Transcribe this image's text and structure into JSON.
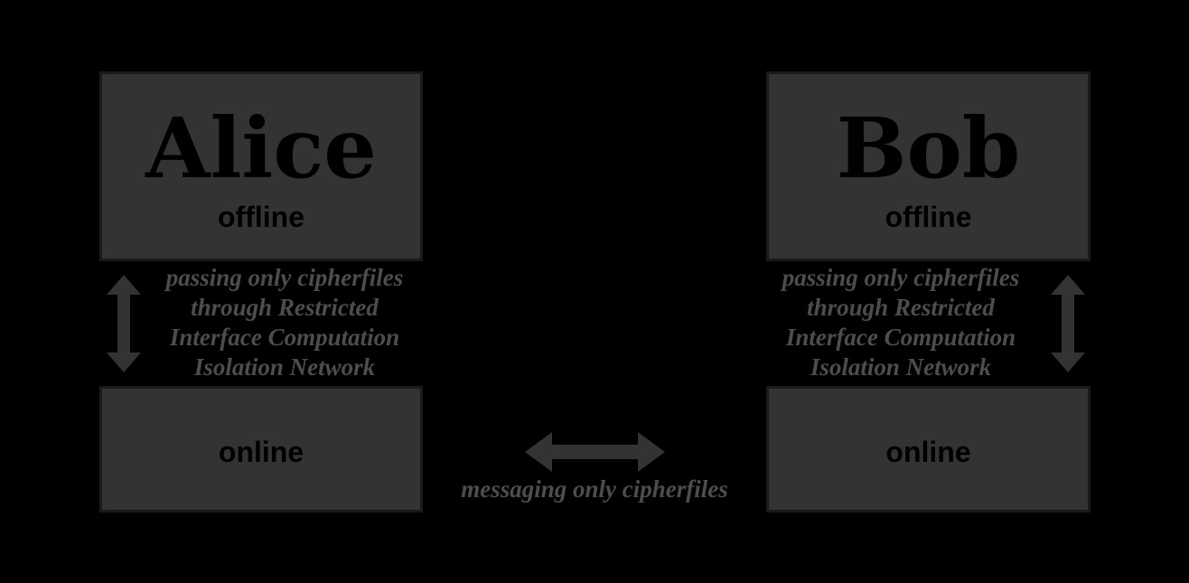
{
  "alice": {
    "name": "Alice",
    "offline_label": "offline",
    "online_label": "online",
    "link_caption": [
      "passing only cipherfiles",
      "through Restricted",
      "Interface Computation",
      "Isolation Network"
    ]
  },
  "bob": {
    "name": "Bob",
    "offline_label": "offline",
    "online_label": "online",
    "link_caption": [
      "passing only cipherfiles",
      "through Restricted",
      "Interface Computation",
      "Isolation Network"
    ]
  },
  "messaging_caption": "messaging only cipherfiles",
  "colors": {
    "background": "#000000",
    "box_fill": "#333333",
    "box_border": "#1a1a1a",
    "arrow": "#333333",
    "caption_text": "#4d4d4d"
  }
}
